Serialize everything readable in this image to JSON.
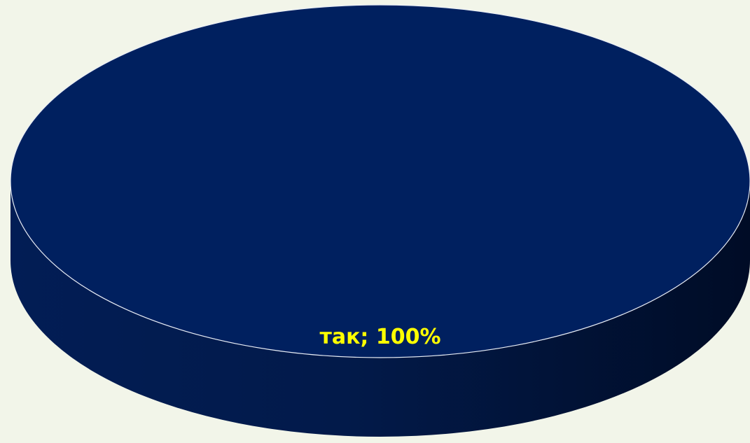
{
  "chart_data": {
    "type": "pie",
    "style": "3d",
    "slices": [
      {
        "label": "так",
        "value": 100,
        "color": "#00205f"
      }
    ],
    "data_labels": [
      "так; 100%"
    ],
    "data_label_color": "#ffff00",
    "background": "#f2f5e9"
  }
}
